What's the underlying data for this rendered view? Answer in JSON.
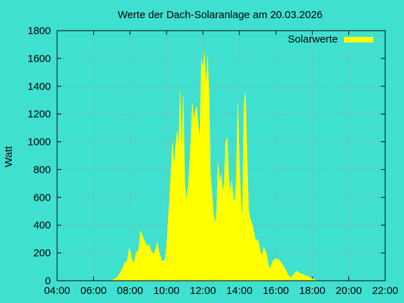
{
  "chart_data": {
    "type": "area",
    "title": "Werte der Dach-Solaranlage am 20.03.2026",
    "ylabel": "Watt",
    "xlabel": "",
    "xlim": [
      "04:00",
      "22:00"
    ],
    "ylim": [
      0,
      1800
    ],
    "x_ticks": [
      "04:00",
      "06:00",
      "08:00",
      "10:00",
      "12:00",
      "14:00",
      "16:00",
      "18:00",
      "20:00",
      "22:00"
    ],
    "y_ticks": [
      "0",
      "200",
      "400",
      "600",
      "800",
      "1000",
      "1200",
      "1400",
      "1600",
      "1800"
    ],
    "grid": true,
    "legend_position": "top-right",
    "colors": {
      "background": "#40E0D0",
      "series": "#FFFF00",
      "grid": "#A0A0A0"
    },
    "series": [
      {
        "name": "Solarwerte",
        "points": [
          [
            "07:00",
            0
          ],
          [
            "07:05",
            8
          ],
          [
            "07:15",
            20
          ],
          [
            "07:25",
            45
          ],
          [
            "07:35",
            90
          ],
          [
            "07:45",
            140
          ],
          [
            "07:50",
            130
          ],
          [
            "07:58",
            240
          ],
          [
            "08:05",
            160
          ],
          [
            "08:12",
            120
          ],
          [
            "08:20",
            200
          ],
          [
            "08:28",
            220
          ],
          [
            "08:35",
            360
          ],
          [
            "08:45",
            300
          ],
          [
            "08:55",
            250
          ],
          [
            "09:02",
            260
          ],
          [
            "09:10",
            210
          ],
          [
            "09:18",
            190
          ],
          [
            "09:25",
            230
          ],
          [
            "09:30",
            280
          ],
          [
            "09:36",
            200
          ],
          [
            "09:45",
            140
          ],
          [
            "09:55",
            150
          ],
          [
            "10:00",
            230
          ],
          [
            "10:05",
            420
          ],
          [
            "10:10",
            580
          ],
          [
            "10:15",
            780
          ],
          [
            "10:20",
            1000
          ],
          [
            "10:25",
            820
          ],
          [
            "10:30",
            960
          ],
          [
            "10:35",
            1080
          ],
          [
            "10:40",
            950
          ],
          [
            "10:45",
            1370
          ],
          [
            "10:50",
            900
          ],
          [
            "10:55",
            1340
          ],
          [
            "11:00",
            720
          ],
          [
            "11:05",
            580
          ],
          [
            "11:12",
            680
          ],
          [
            "11:20",
            1000
          ],
          [
            "11:25",
            1280
          ],
          [
            "11:30",
            1150
          ],
          [
            "11:35",
            1220
          ],
          [
            "11:40",
            1250
          ],
          [
            "11:45",
            1100
          ],
          [
            "11:50",
            1030
          ],
          [
            "11:55",
            1600
          ],
          [
            "12:00",
            1520
          ],
          [
            "12:05",
            1640
          ],
          [
            "12:10",
            1380
          ],
          [
            "12:15",
            1620
          ],
          [
            "12:20",
            1350
          ],
          [
            "12:25",
            760
          ],
          [
            "12:30",
            620
          ],
          [
            "12:35",
            480
          ],
          [
            "12:40",
            400
          ],
          [
            "12:45",
            500
          ],
          [
            "12:50",
            850
          ],
          [
            "12:55",
            700
          ],
          [
            "13:00",
            770
          ],
          [
            "13:05",
            640
          ],
          [
            "13:10",
            700
          ],
          [
            "13:15",
            1000
          ],
          [
            "13:20",
            1030
          ],
          [
            "13:25",
            740
          ],
          [
            "13:30",
            640
          ],
          [
            "13:35",
            720
          ],
          [
            "13:40",
            600
          ],
          [
            "13:45",
            560
          ],
          [
            "13:50",
            760
          ],
          [
            "13:55",
            1280
          ],
          [
            "14:00",
            850
          ],
          [
            "14:05",
            580
          ],
          [
            "14:10",
            430
          ],
          [
            "14:15",
            1260
          ],
          [
            "14:20",
            1360
          ],
          [
            "14:25",
            920
          ],
          [
            "14:30",
            520
          ],
          [
            "14:35",
            450
          ],
          [
            "14:40",
            420
          ],
          [
            "14:45",
            380
          ],
          [
            "14:50",
            320
          ],
          [
            "14:55",
            280
          ],
          [
            "15:00",
            300
          ],
          [
            "15:05",
            260
          ],
          [
            "15:10",
            200
          ],
          [
            "15:15",
            180
          ],
          [
            "15:20",
            240
          ],
          [
            "15:25",
            220
          ],
          [
            "15:30",
            180
          ],
          [
            "15:35",
            120
          ],
          [
            "15:40",
            80
          ],
          [
            "15:45",
            110
          ],
          [
            "15:50",
            140
          ],
          [
            "16:00",
            160
          ],
          [
            "16:10",
            150
          ],
          [
            "16:20",
            120
          ],
          [
            "16:30",
            90
          ],
          [
            "16:40",
            40
          ],
          [
            "16:50",
            20
          ],
          [
            "17:00",
            50
          ],
          [
            "17:10",
            70
          ],
          [
            "17:20",
            50
          ],
          [
            "17:30",
            45
          ],
          [
            "17:45",
            30
          ],
          [
            "18:00",
            15
          ],
          [
            "18:10",
            5
          ],
          [
            "18:20",
            0
          ]
        ]
      }
    ]
  }
}
